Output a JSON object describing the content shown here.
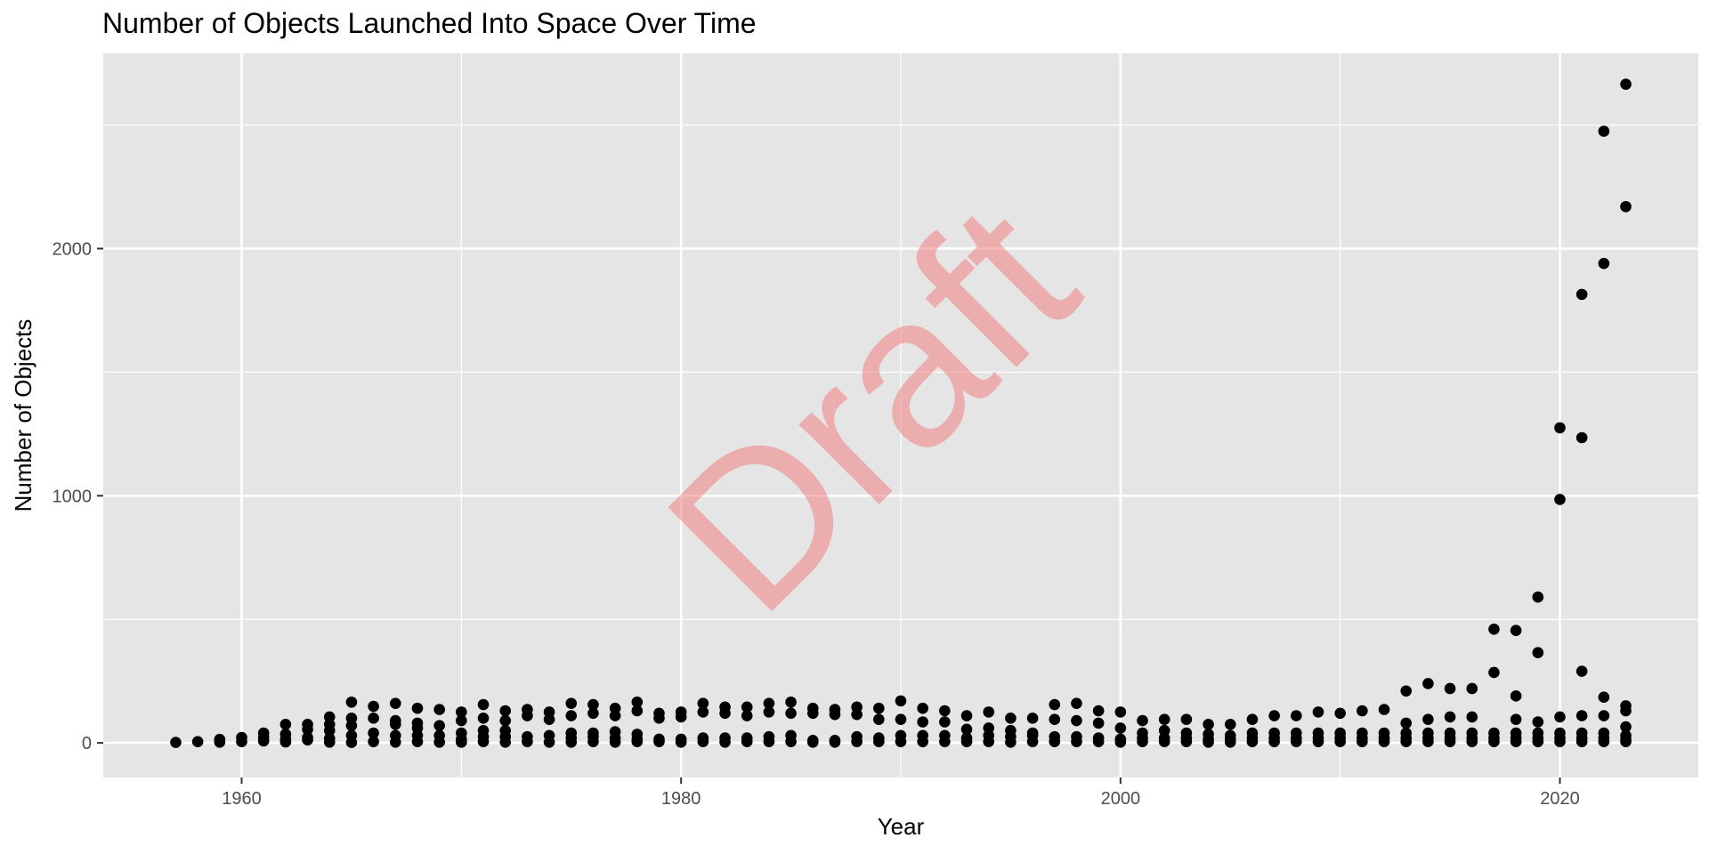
{
  "chart_data": {
    "type": "scatter",
    "title": "Number of Objects Launched Into Space Over Time",
    "xlabel": "Year",
    "ylabel": "Number of Objects",
    "xlim": [
      1953.7,
      2026.3
    ],
    "ylim": [
      -140,
      2790
    ],
    "x_ticks": [
      1960,
      1980,
      2000,
      2020
    ],
    "y_ticks": [
      0,
      1000,
      2000
    ],
    "grid": true,
    "background": "#e5e5e5",
    "grid_color": "#ffffff",
    "point_color": "#000000",
    "watermark": {
      "text": "Draft",
      "color": "#f08080"
    },
    "points": [
      [
        1957,
        2
      ],
      [
        1958,
        5
      ],
      [
        1959,
        3
      ],
      [
        1959,
        14
      ],
      [
        1960,
        5
      ],
      [
        1960,
        22
      ],
      [
        1961,
        8
      ],
      [
        1961,
        22
      ],
      [
        1961,
        40
      ],
      [
        1962,
        4
      ],
      [
        1962,
        15
      ],
      [
        1962,
        35
      ],
      [
        1962,
        75
      ],
      [
        1963,
        12
      ],
      [
        1963,
        22
      ],
      [
        1963,
        55
      ],
      [
        1963,
        75
      ],
      [
        1964,
        3
      ],
      [
        1964,
        18
      ],
      [
        1964,
        50
      ],
      [
        1964,
        75
      ],
      [
        1964,
        105
      ],
      [
        1965,
        2
      ],
      [
        1965,
        30
      ],
      [
        1965,
        70
      ],
      [
        1965,
        100
      ],
      [
        1965,
        165
      ],
      [
        1966,
        5
      ],
      [
        1966,
        40
      ],
      [
        1966,
        100
      ],
      [
        1966,
        148
      ],
      [
        1967,
        3
      ],
      [
        1967,
        30
      ],
      [
        1967,
        75
      ],
      [
        1967,
        90
      ],
      [
        1967,
        160
      ],
      [
        1968,
        5
      ],
      [
        1968,
        30
      ],
      [
        1968,
        60
      ],
      [
        1968,
        80
      ],
      [
        1968,
        140
      ],
      [
        1969,
        3
      ],
      [
        1969,
        30
      ],
      [
        1969,
        70
      ],
      [
        1969,
        135
      ],
      [
        1970,
        3
      ],
      [
        1970,
        15
      ],
      [
        1970,
        40
      ],
      [
        1970,
        90
      ],
      [
        1970,
        125
      ],
      [
        1971,
        5
      ],
      [
        1971,
        25
      ],
      [
        1971,
        50
      ],
      [
        1971,
        100
      ],
      [
        1971,
        155
      ],
      [
        1972,
        3
      ],
      [
        1972,
        25
      ],
      [
        1972,
        50
      ],
      [
        1972,
        90
      ],
      [
        1972,
        130
      ],
      [
        1973,
        5
      ],
      [
        1973,
        25
      ],
      [
        1973,
        110
      ],
      [
        1973,
        135
      ],
      [
        1974,
        3
      ],
      [
        1974,
        30
      ],
      [
        1974,
        95
      ],
      [
        1974,
        125
      ],
      [
        1975,
        3
      ],
      [
        1975,
        20
      ],
      [
        1975,
        40
      ],
      [
        1975,
        110
      ],
      [
        1975,
        160
      ],
      [
        1976,
        5
      ],
      [
        1976,
        25
      ],
      [
        1976,
        40
      ],
      [
        1976,
        120
      ],
      [
        1976,
        155
      ],
      [
        1977,
        3
      ],
      [
        1977,
        20
      ],
      [
        1977,
        45
      ],
      [
        1977,
        110
      ],
      [
        1977,
        140
      ],
      [
        1978,
        5
      ],
      [
        1978,
        15
      ],
      [
        1978,
        35
      ],
      [
        1978,
        130
      ],
      [
        1978,
        165
      ],
      [
        1979,
        5
      ],
      [
        1979,
        15
      ],
      [
        1979,
        100
      ],
      [
        1979,
        120
      ],
      [
        1980,
        3
      ],
      [
        1980,
        15
      ],
      [
        1980,
        105
      ],
      [
        1980,
        125
      ],
      [
        1981,
        5
      ],
      [
        1981,
        20
      ],
      [
        1981,
        125
      ],
      [
        1981,
        160
      ],
      [
        1982,
        3
      ],
      [
        1982,
        20
      ],
      [
        1982,
        120
      ],
      [
        1982,
        145
      ],
      [
        1983,
        5
      ],
      [
        1983,
        20
      ],
      [
        1983,
        110
      ],
      [
        1983,
        145
      ],
      [
        1984,
        5
      ],
      [
        1984,
        25
      ],
      [
        1984,
        125
      ],
      [
        1984,
        160
      ],
      [
        1985,
        5
      ],
      [
        1985,
        30
      ],
      [
        1985,
        120
      ],
      [
        1985,
        165
      ],
      [
        1986,
        3
      ],
      [
        1986,
        10
      ],
      [
        1986,
        120
      ],
      [
        1986,
        140
      ],
      [
        1987,
        3
      ],
      [
        1987,
        10
      ],
      [
        1987,
        115
      ],
      [
        1987,
        135
      ],
      [
        1988,
        5
      ],
      [
        1988,
        25
      ],
      [
        1988,
        115
      ],
      [
        1988,
        145
      ],
      [
        1989,
        5
      ],
      [
        1989,
        20
      ],
      [
        1989,
        95
      ],
      [
        1989,
        140
      ],
      [
        1990,
        5
      ],
      [
        1990,
        30
      ],
      [
        1990,
        95
      ],
      [
        1990,
        170
      ],
      [
        1991,
        5
      ],
      [
        1991,
        30
      ],
      [
        1991,
        85
      ],
      [
        1991,
        140
      ],
      [
        1992,
        5
      ],
      [
        1992,
        30
      ],
      [
        1992,
        85
      ],
      [
        1992,
        130
      ],
      [
        1993,
        5
      ],
      [
        1993,
        20
      ],
      [
        1993,
        55
      ],
      [
        1993,
        110
      ],
      [
        1994,
        5
      ],
      [
        1994,
        30
      ],
      [
        1994,
        60
      ],
      [
        1994,
        125
      ],
      [
        1995,
        3
      ],
      [
        1995,
        25
      ],
      [
        1995,
        50
      ],
      [
        1995,
        100
      ],
      [
        1996,
        5
      ],
      [
        1996,
        30
      ],
      [
        1996,
        40
      ],
      [
        1996,
        100
      ],
      [
        1997,
        5
      ],
      [
        1997,
        25
      ],
      [
        1997,
        95
      ],
      [
        1997,
        155
      ],
      [
        1998,
        5
      ],
      [
        1998,
        25
      ],
      [
        1998,
        90
      ],
      [
        1998,
        160
      ],
      [
        1999,
        5
      ],
      [
        1999,
        20
      ],
      [
        1999,
        80
      ],
      [
        1999,
        130
      ],
      [
        2000,
        3
      ],
      [
        2000,
        15
      ],
      [
        2000,
        60
      ],
      [
        2000,
        125
      ],
      [
        2001,
        5
      ],
      [
        2001,
        20
      ],
      [
        2001,
        40
      ],
      [
        2001,
        90
      ],
      [
        2002,
        5
      ],
      [
        2002,
        20
      ],
      [
        2002,
        50
      ],
      [
        2002,
        95
      ],
      [
        2003,
        5
      ],
      [
        2003,
        20
      ],
      [
        2003,
        40
      ],
      [
        2003,
        95
      ],
      [
        2004,
        3
      ],
      [
        2004,
        15
      ],
      [
        2004,
        35
      ],
      [
        2004,
        75
      ],
      [
        2005,
        3
      ],
      [
        2005,
        15
      ],
      [
        2005,
        30
      ],
      [
        2005,
        75
      ],
      [
        2006,
        5
      ],
      [
        2006,
        20
      ],
      [
        2006,
        40
      ],
      [
        2006,
        95
      ],
      [
        2007,
        5
      ],
      [
        2007,
        20
      ],
      [
        2007,
        40
      ],
      [
        2007,
        110
      ],
      [
        2008,
        5
      ],
      [
        2008,
        20
      ],
      [
        2008,
        40
      ],
      [
        2008,
        110
      ],
      [
        2009,
        5
      ],
      [
        2009,
        20
      ],
      [
        2009,
        40
      ],
      [
        2009,
        125
      ],
      [
        2010,
        5
      ],
      [
        2010,
        20
      ],
      [
        2010,
        40
      ],
      [
        2010,
        120
      ],
      [
        2011,
        5
      ],
      [
        2011,
        20
      ],
      [
        2011,
        40
      ],
      [
        2011,
        130
      ],
      [
        2012,
        5
      ],
      [
        2012,
        20
      ],
      [
        2012,
        40
      ],
      [
        2012,
        135
      ],
      [
        2013,
        5
      ],
      [
        2013,
        20
      ],
      [
        2013,
        40
      ],
      [
        2013,
        80
      ],
      [
        2013,
        210
      ],
      [
        2014,
        5
      ],
      [
        2014,
        20
      ],
      [
        2014,
        40
      ],
      [
        2014,
        95
      ],
      [
        2014,
        240
      ],
      [
        2015,
        5
      ],
      [
        2015,
        20
      ],
      [
        2015,
        40
      ],
      [
        2015,
        105
      ],
      [
        2015,
        220
      ],
      [
        2016,
        5
      ],
      [
        2016,
        20
      ],
      [
        2016,
        40
      ],
      [
        2016,
        105
      ],
      [
        2016,
        220
      ],
      [
        2017,
        5
      ],
      [
        2017,
        20
      ],
      [
        2017,
        40
      ],
      [
        2017,
        285
      ],
      [
        2017,
        460
      ],
      [
        2018,
        5
      ],
      [
        2018,
        20
      ],
      [
        2018,
        40
      ],
      [
        2018,
        95
      ],
      [
        2018,
        190
      ],
      [
        2018,
        455
      ],
      [
        2019,
        5
      ],
      [
        2019,
        20
      ],
      [
        2019,
        40
      ],
      [
        2019,
        85
      ],
      [
        2019,
        365
      ],
      [
        2019,
        590
      ],
      [
        2020,
        5
      ],
      [
        2020,
        20
      ],
      [
        2020,
        40
      ],
      [
        2020,
        105
      ],
      [
        2020,
        985
      ],
      [
        2020,
        1275
      ],
      [
        2021,
        5
      ],
      [
        2021,
        20
      ],
      [
        2021,
        40
      ],
      [
        2021,
        110
      ],
      [
        2021,
        290
      ],
      [
        2021,
        1235
      ],
      [
        2021,
        1815
      ],
      [
        2022,
        5
      ],
      [
        2022,
        20
      ],
      [
        2022,
        40
      ],
      [
        2022,
        110
      ],
      [
        2022,
        185
      ],
      [
        2022,
        1940
      ],
      [
        2022,
        2475
      ],
      [
        2023,
        5
      ],
      [
        2023,
        15
      ],
      [
        2023,
        30
      ],
      [
        2023,
        65
      ],
      [
        2023,
        130
      ],
      [
        2023,
        150
      ],
      [
        2023,
        2170
      ],
      [
        2023,
        2665
      ]
    ]
  }
}
